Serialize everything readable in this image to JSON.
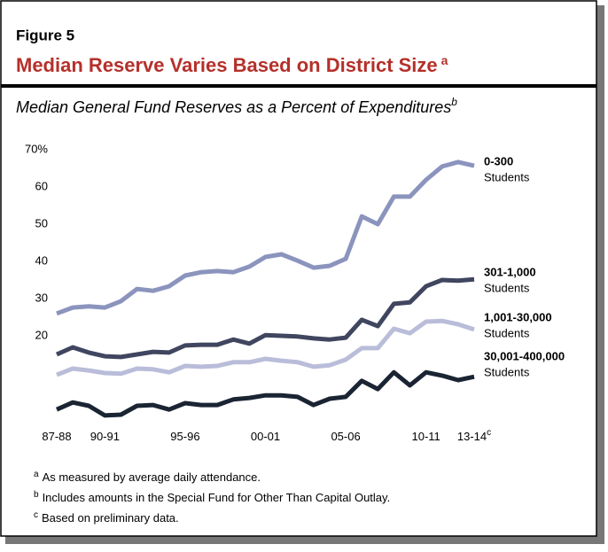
{
  "figure_label": "Figure 5",
  "footnotes": [
    {
      "marker": "a",
      "text": "As measured by average daily attendance."
    },
    {
      "marker": "b",
      "text": "Includes amounts in the Special Fund for Other Than Capital Outlay."
    },
    {
      "marker": "c",
      "text": "Based on preliminary data."
    }
  ],
  "chart_data": {
    "type": "line",
    "title": "Median Reserve Varies Based on District Size",
    "title_note": "a",
    "subtitle": "Median General Fund Reserves as a Percent of Expenditures",
    "subtitle_note": "b",
    "categories": [
      "87-88",
      null,
      null,
      "90-91",
      null,
      null,
      null,
      null,
      "95-96",
      null,
      null,
      null,
      null,
      "00-01",
      null,
      null,
      null,
      null,
      "05-06",
      null,
      null,
      null,
      null,
      "10-11",
      null,
      null,
      "13-14"
    ],
    "last_category_note": "c",
    "ylim": [
      -5,
      70
    ],
    "yticks": [
      20,
      30,
      40,
      50,
      60,
      {
        "value": 70,
        "label": "70%"
      }
    ],
    "series": [
      {
        "name": "0-300",
        "sublabel": "Students",
        "color": "#8b94bd",
        "values": [
          26,
          27.6,
          27.9,
          27.6,
          29.3,
          32.6,
          32.1,
          33.3,
          36.2,
          37.1,
          37.4,
          37.1,
          38.6,
          41.2,
          41.9,
          40.2,
          38.3,
          38.8,
          40.7,
          52.1,
          50,
          57.4,
          57.4,
          61.9,
          65.5,
          66.7,
          65.7
        ]
      },
      {
        "name": "301-1,000",
        "sublabel": "Students",
        "color": "#40465f",
        "values": [
          15,
          16.9,
          15.5,
          14.5,
          14.3,
          15,
          15.7,
          15.5,
          17.4,
          17.6,
          17.6,
          19,
          17.9,
          20.2,
          20,
          19.8,
          19.3,
          19,
          19.5,
          24.3,
          22.6,
          28.6,
          29,
          33.3,
          35,
          34.8,
          35.2
        ]
      },
      {
        "name": "1,001-30,000",
        "sublabel": "Students",
        "color": "#b9bdd9",
        "values": [
          9.5,
          11.2,
          10.7,
          10,
          9.8,
          11.2,
          11,
          10.2,
          11.9,
          11.7,
          11.9,
          12.9,
          12.9,
          13.8,
          13.3,
          12.9,
          11.7,
          12.1,
          13.6,
          16.7,
          16.7,
          21.9,
          20.7,
          23.8,
          24,
          23.1,
          21.7
        ]
      },
      {
        "name": "30,001-400,000",
        "sublabel": "Students",
        "color": "#1a2433",
        "values": [
          0.2,
          2.1,
          1.2,
          -1.4,
          -1.2,
          1.2,
          1.4,
          0.2,
          1.9,
          1.4,
          1.4,
          2.9,
          3.3,
          4,
          4,
          3.6,
          1.4,
          3.1,
          3.6,
          7.9,
          5.7,
          10.2,
          6.7,
          10.2,
          9.3,
          8.1,
          9.0
        ]
      }
    ]
  }
}
